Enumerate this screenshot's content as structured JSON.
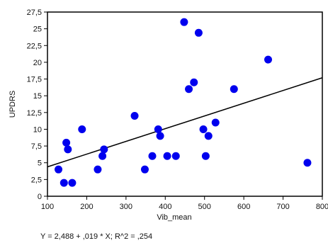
{
  "chart_data": {
    "type": "scatter",
    "xlabel": "Vib_mean",
    "ylabel": "UPDRS",
    "xlim": [
      100,
      800
    ],
    "ylim": [
      0,
      27.5
    ],
    "x_ticks": [
      "100",
      "200",
      "300",
      "400",
      "500",
      "600",
      "700",
      "800"
    ],
    "y_ticks": [
      "0",
      "2,5",
      "5",
      "7,5",
      "10",
      "12,5",
      "15",
      "17,5",
      "20",
      "22,5",
      "25",
      "27,5"
    ],
    "points": [
      {
        "x": 128,
        "y": 4
      },
      {
        "x": 142,
        "y": 2
      },
      {
        "x": 148,
        "y": 8
      },
      {
        "x": 152,
        "y": 7
      },
      {
        "x": 163,
        "y": 2
      },
      {
        "x": 188,
        "y": 10
      },
      {
        "x": 228,
        "y": 4
      },
      {
        "x": 240,
        "y": 6
      },
      {
        "x": 244,
        "y": 7
      },
      {
        "x": 322,
        "y": 12
      },
      {
        "x": 348,
        "y": 4
      },
      {
        "x": 367,
        "y": 6
      },
      {
        "x": 382,
        "y": 10
      },
      {
        "x": 387,
        "y": 9
      },
      {
        "x": 405,
        "y": 6
      },
      {
        "x": 427,
        "y": 6
      },
      {
        "x": 448,
        "y": 26
      },
      {
        "x": 460,
        "y": 16
      },
      {
        "x": 473,
        "y": 17
      },
      {
        "x": 485,
        "y": 24.4
      },
      {
        "x": 497,
        "y": 10
      },
      {
        "x": 503,
        "y": 6
      },
      {
        "x": 510,
        "y": 9
      },
      {
        "x": 528,
        "y": 11
      },
      {
        "x": 575,
        "y": 16
      },
      {
        "x": 662,
        "y": 20.4
      },
      {
        "x": 762,
        "y": 5
      }
    ],
    "fit": {
      "intercept": 2.488,
      "slope": 0.019
    },
    "annotation": "Y = 2,488 + ,019 * X; R^2 = ,254",
    "grid": false,
    "colors": {
      "points": "#0000ee",
      "line": "#000000",
      "axis": "#000000"
    }
  }
}
